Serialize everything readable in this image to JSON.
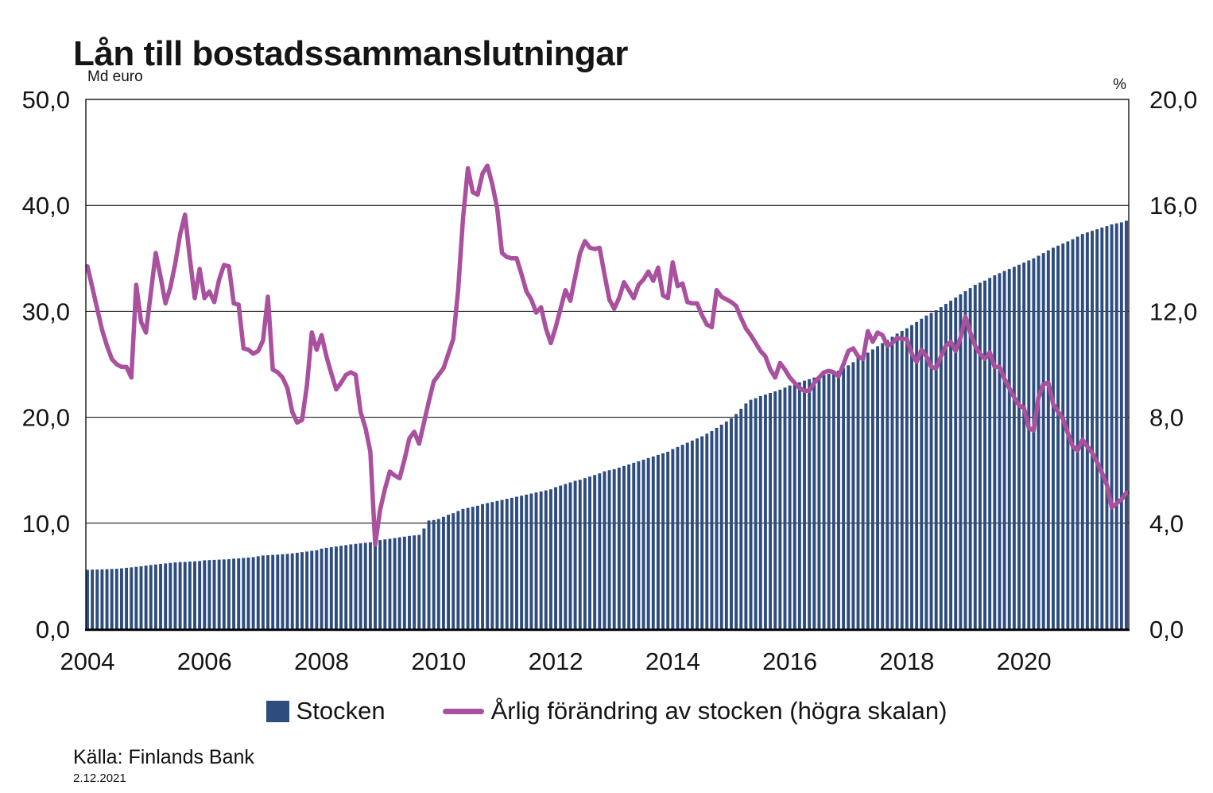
{
  "title": "Lån till bostadssammanslutningar",
  "legend": {
    "bar_label": "Stocken",
    "line_label": "Årlig förändring av stocken (högra skalan)"
  },
  "source": "Källa: Finlands Bank",
  "date": "2.12.2021",
  "colors": {
    "bar": "#2E4D7E",
    "line": "#A9509E",
    "grid": "#000000",
    "axis": "#000000",
    "text": "#151515"
  },
  "chart_data": {
    "type": "combo",
    "title": "Lån till bostadssammanslutningar",
    "left_axis": {
      "unit": "Md euro",
      "min": 0,
      "max": 50,
      "tick_step": 10,
      "ticks": [
        "0,0",
        "10,0",
        "20,0",
        "30,0",
        "40,0",
        "50,0"
      ]
    },
    "right_axis": {
      "unit": "%",
      "min": 0,
      "max": 20,
      "tick_step": 4,
      "ticks": [
        "0,0",
        "4,0",
        "8,0",
        "12,0",
        "16,0",
        "20,0"
      ]
    },
    "x_axis": {
      "start": "2004-01",
      "end": "2021-10",
      "months": 214,
      "tick_labels": [
        "2004",
        "2006",
        "2008",
        "2010",
        "2012",
        "2014",
        "2016",
        "2018",
        "2020"
      ]
    },
    "grid": "horizontal",
    "legend_position": "bottom",
    "series": [
      {
        "name": "Stocken",
        "type": "bar",
        "axis": "left",
        "values": [
          5.6,
          5.62,
          5.63,
          5.64,
          5.66,
          5.68,
          5.7,
          5.74,
          5.79,
          5.83,
          5.88,
          5.93,
          6.0,
          6.05,
          6.1,
          6.15,
          6.2,
          6.25,
          6.3,
          6.33,
          6.35,
          6.38,
          6.4,
          6.43,
          6.5,
          6.52,
          6.54,
          6.56,
          6.58,
          6.6,
          6.65,
          6.68,
          6.72,
          6.76,
          6.8,
          6.88,
          6.95,
          6.98,
          7.01,
          7.04,
          7.07,
          7.1,
          7.15,
          7.21,
          7.27,
          7.33,
          7.4,
          7.45,
          7.6,
          7.67,
          7.73,
          7.8,
          7.87,
          7.93,
          8.0,
          8.05,
          8.1,
          8.15,
          8.2,
          8.3,
          8.4,
          8.47,
          8.53,
          8.6,
          8.67,
          8.73,
          8.8,
          8.85,
          8.9,
          9.5,
          10.25,
          10.3,
          10.4,
          10.6,
          10.8,
          10.95,
          11.15,
          11.35,
          11.45,
          11.55,
          11.65,
          11.8,
          11.9,
          12.0,
          12.1,
          12.2,
          12.3,
          12.4,
          12.5,
          12.6,
          12.7,
          12.8,
          12.9,
          13.0,
          13.1,
          13.2,
          13.4,
          13.55,
          13.7,
          13.85,
          14.0,
          14.1,
          14.25,
          14.4,
          14.55,
          14.7,
          14.9,
          15.0,
          15.1,
          15.25,
          15.4,
          15.55,
          15.7,
          15.85,
          16.0,
          16.15,
          16.3,
          16.45,
          16.6,
          16.75,
          17.0,
          17.2,
          17.4,
          17.6,
          17.8,
          18.0,
          18.2,
          18.45,
          18.7,
          19.0,
          19.3,
          19.6,
          19.9,
          20.3,
          20.8,
          21.3,
          21.65,
          21.8,
          22.0,
          22.15,
          22.3,
          22.45,
          22.6,
          22.8,
          23.0,
          23.15,
          23.3,
          23.45,
          23.6,
          23.75,
          23.9,
          24.0,
          24.1,
          24.25,
          24.4,
          24.65,
          24.9,
          25.2,
          25.6,
          25.85,
          26.1,
          26.4,
          26.7,
          27.0,
          27.3,
          27.6,
          27.9,
          28.15,
          28.4,
          28.7,
          29.0,
          29.3,
          29.6,
          29.85,
          30.1,
          30.4,
          30.7,
          31.0,
          31.3,
          31.6,
          31.9,
          32.2,
          32.5,
          32.7,
          32.9,
          33.15,
          33.4,
          33.6,
          33.8,
          34.0,
          34.2,
          34.4,
          34.6,
          34.8,
          35.0,
          35.25,
          35.5,
          35.75,
          36.0,
          36.2,
          36.4,
          36.6,
          36.8,
          37.05,
          37.3,
          37.45,
          37.6,
          37.75,
          37.9,
          38.05,
          38.2,
          38.3,
          38.4,
          38.55
        ]
      },
      {
        "name": "Årlig förändring av stocken (högra skalan)",
        "type": "line",
        "axis": "right",
        "values": [
          13.7,
          12.9,
          12.1,
          11.3,
          10.7,
          10.2,
          10.0,
          9.9,
          9.9,
          9.5,
          13.0,
          11.6,
          11.2,
          12.7,
          14.2,
          13.3,
          12.3,
          12.9,
          13.8,
          14.9,
          15.65,
          14.0,
          12.5,
          13.6,
          12.5,
          12.75,
          12.35,
          13.2,
          13.75,
          13.7,
          12.3,
          12.25,
          10.6,
          10.55,
          10.4,
          10.5,
          10.9,
          12.55,
          9.8,
          9.7,
          9.5,
          9.1,
          8.2,
          7.8,
          7.9,
          9.2,
          11.2,
          10.55,
          11.1,
          10.3,
          9.65,
          9.05,
          9.3,
          9.6,
          9.7,
          9.6,
          8.2,
          7.6,
          6.7,
          3.2,
          4.5,
          5.3,
          5.95,
          5.8,
          5.7,
          6.4,
          7.2,
          7.45,
          7.0,
          7.8,
          8.6,
          9.35,
          9.6,
          9.85,
          10.4,
          10.95,
          12.8,
          15.5,
          17.4,
          16.5,
          16.4,
          17.2,
          17.5,
          16.8,
          15.9,
          14.2,
          14.05,
          14.0,
          14.0,
          13.4,
          12.75,
          12.45,
          11.95,
          12.15,
          11.35,
          10.8,
          11.4,
          12.1,
          12.8,
          12.4,
          13.3,
          14.2,
          14.65,
          14.4,
          14.35,
          14.4,
          13.4,
          12.45,
          12.1,
          12.5,
          13.1,
          12.8,
          12.5,
          13.0,
          13.2,
          13.5,
          13.15,
          13.65,
          12.6,
          12.5,
          13.85,
          12.95,
          13.05,
          12.35,
          12.3,
          12.3,
          11.85,
          11.5,
          11.4,
          12.8,
          12.55,
          12.45,
          12.35,
          12.2,
          11.75,
          11.35,
          11.1,
          10.8,
          10.5,
          10.3,
          9.8,
          9.5,
          10.05,
          9.8,
          9.5,
          9.3,
          9.1,
          9.0,
          9.0,
          9.3,
          9.5,
          9.7,
          9.75,
          9.7,
          9.55,
          10.0,
          10.5,
          10.6,
          10.3,
          10.2,
          11.25,
          10.85,
          11.2,
          11.1,
          10.7,
          10.8,
          11.0,
          10.95,
          10.95,
          10.4,
          10.1,
          10.55,
          10.3,
          9.9,
          9.85,
          10.3,
          10.7,
          10.85,
          10.5,
          11.0,
          11.8,
          11.2,
          10.7,
          10.4,
          10.2,
          10.45,
          9.9,
          9.9,
          9.45,
          9.1,
          8.75,
          8.45,
          8.35,
          7.6,
          7.5,
          8.75,
          9.25,
          9.3,
          8.5,
          8.2,
          7.95,
          7.4,
          6.9,
          6.75,
          7.15,
          6.9,
          6.65,
          6.3,
          5.9,
          5.45,
          4.6,
          4.75,
          4.9,
          5.15
        ]
      }
    ]
  }
}
